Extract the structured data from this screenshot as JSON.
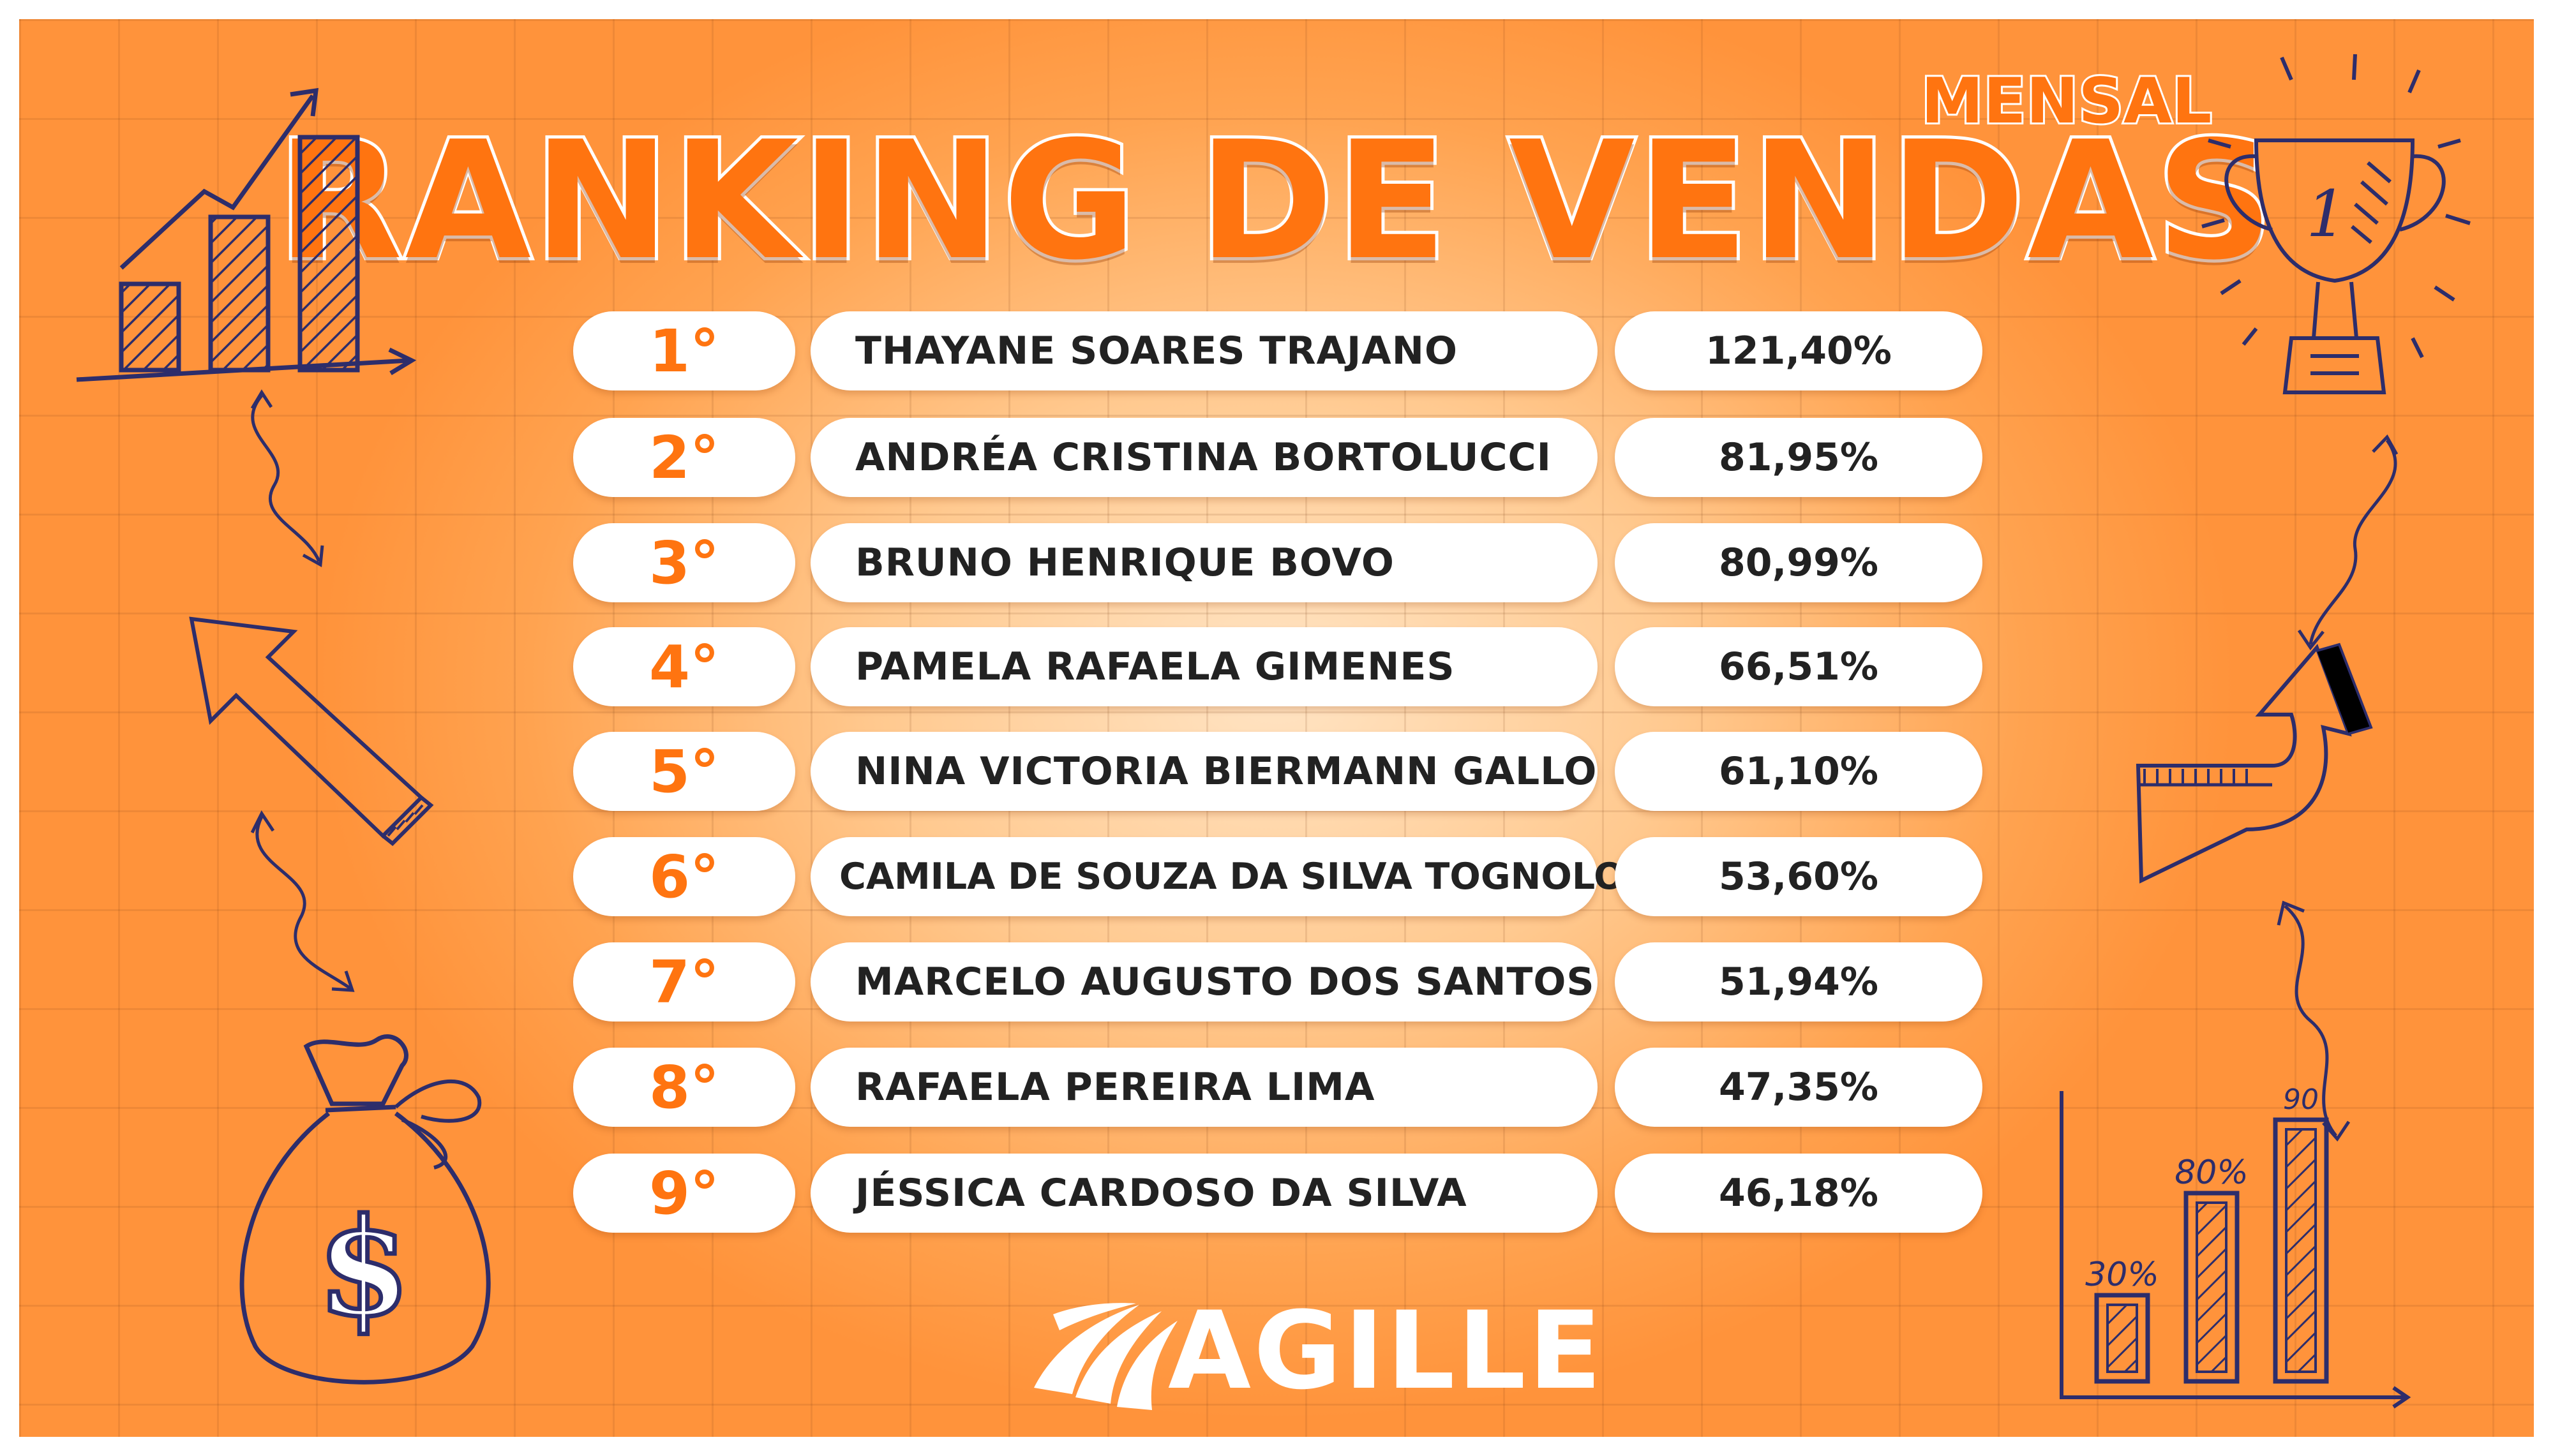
{
  "header": {
    "title": "RANKING DE VENDAS",
    "subtitle": "MENSAL"
  },
  "ranking": [
    {
      "position": "1°",
      "name": "THAYANE SOARES TRAJANO",
      "percent": "121,40%"
    },
    {
      "position": "2°",
      "name": "ANDRÉA CRISTINA BORTOLUCCI",
      "percent": "81,95%"
    },
    {
      "position": "3°",
      "name": "BRUNO HENRIQUE BOVO",
      "percent": "80,99%"
    },
    {
      "position": "4°",
      "name": "PAMELA RAFAELA GIMENES",
      "percent": "66,51%"
    },
    {
      "position": "5°",
      "name": "NINA VICTORIA BIERMANN GALLO",
      "percent": "61,10%"
    },
    {
      "position": "6°",
      "name": "CAMILA DE SOUZA DA SILVA TOGNOLO",
      "percent": "53,60%"
    },
    {
      "position": "7°",
      "name": "MARCELO AUGUSTO DOS SANTOS",
      "percent": "51,94%"
    },
    {
      "position": "8°",
      "name": "RAFAELA PEREIRA LIMA",
      "percent": "47,35%"
    },
    {
      "position": "9°",
      "name": "JÉSSICA CARDOSO DA SILVA",
      "percent": "46,18%"
    }
  ],
  "logo": {
    "text": "AGILLE"
  },
  "decor": {
    "trophy_number": "1",
    "currency_symbol": "$",
    "bar_labels": [
      "30%",
      "80%",
      "90"
    ]
  },
  "colors": {
    "accent": "#ff7410",
    "ink": "#2d2d6b"
  }
}
